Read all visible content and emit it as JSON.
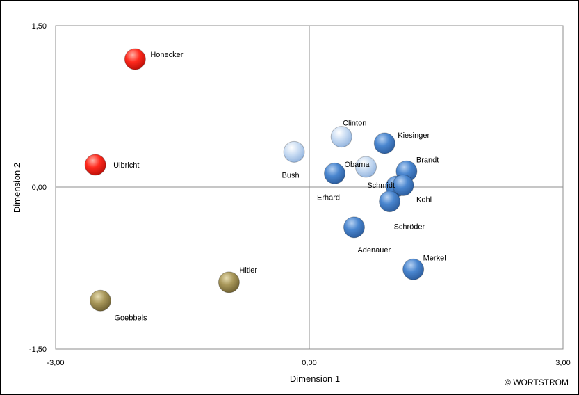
{
  "chart_data": {
    "type": "scatter",
    "xlabel": "Dimension 1",
    "ylabel": "Dimension 2",
    "xlim": [
      -3,
      3
    ],
    "ylim": [
      -1.5,
      1.5
    ],
    "x_ticks": [
      "-3,00",
      "0,00",
      "3,00"
    ],
    "y_ticks": [
      "1,50",
      "0,00",
      "-1,50"
    ],
    "grid": false,
    "legend": "none",
    "credit": "© WORTSTROM",
    "colors": {
      "red": "#ff2a1e",
      "olive": "#a8975a",
      "blue": "#4a86cf",
      "lightblue": "#c6daf2"
    },
    "points": [
      {
        "label": "Honecker",
        "x": -2.06,
        "y": 1.19,
        "color": "red"
      },
      {
        "label": "Ulbricht",
        "x": -2.53,
        "y": 0.21,
        "color": "red"
      },
      {
        "label": "Hitler",
        "x": -0.95,
        "y": -0.88,
        "color": "olive"
      },
      {
        "label": "Goebbels",
        "x": -2.47,
        "y": -1.05,
        "color": "olive"
      },
      {
        "label": "Bush",
        "x": -0.18,
        "y": 0.33,
        "color": "lightblue"
      },
      {
        "label": "Clinton",
        "x": 0.38,
        "y": 0.47,
        "color": "lightblue"
      },
      {
        "label": "Obama",
        "x": 0.67,
        "y": 0.19,
        "color": "lightblue"
      },
      {
        "label": "Kiesinger",
        "x": 0.89,
        "y": 0.41,
        "color": "blue"
      },
      {
        "label": "Brandt",
        "x": 1.15,
        "y": 0.15,
        "color": "blue"
      },
      {
        "label": "Erhard",
        "x": 0.3,
        "y": 0.13,
        "color": "blue"
      },
      {
        "label": "Schmidt",
        "x": 1.03,
        "y": 0.01,
        "color": "blue"
      },
      {
        "label": "Kohl",
        "x": 1.11,
        "y": 0.02,
        "color": "blue"
      },
      {
        "label": "Schröder",
        "x": 0.95,
        "y": -0.13,
        "color": "blue"
      },
      {
        "label": "Adenauer",
        "x": 0.53,
        "y": -0.37,
        "color": "blue"
      },
      {
        "label": "Merkel",
        "x": 1.23,
        "y": -0.76,
        "color": "blue"
      }
    ]
  }
}
